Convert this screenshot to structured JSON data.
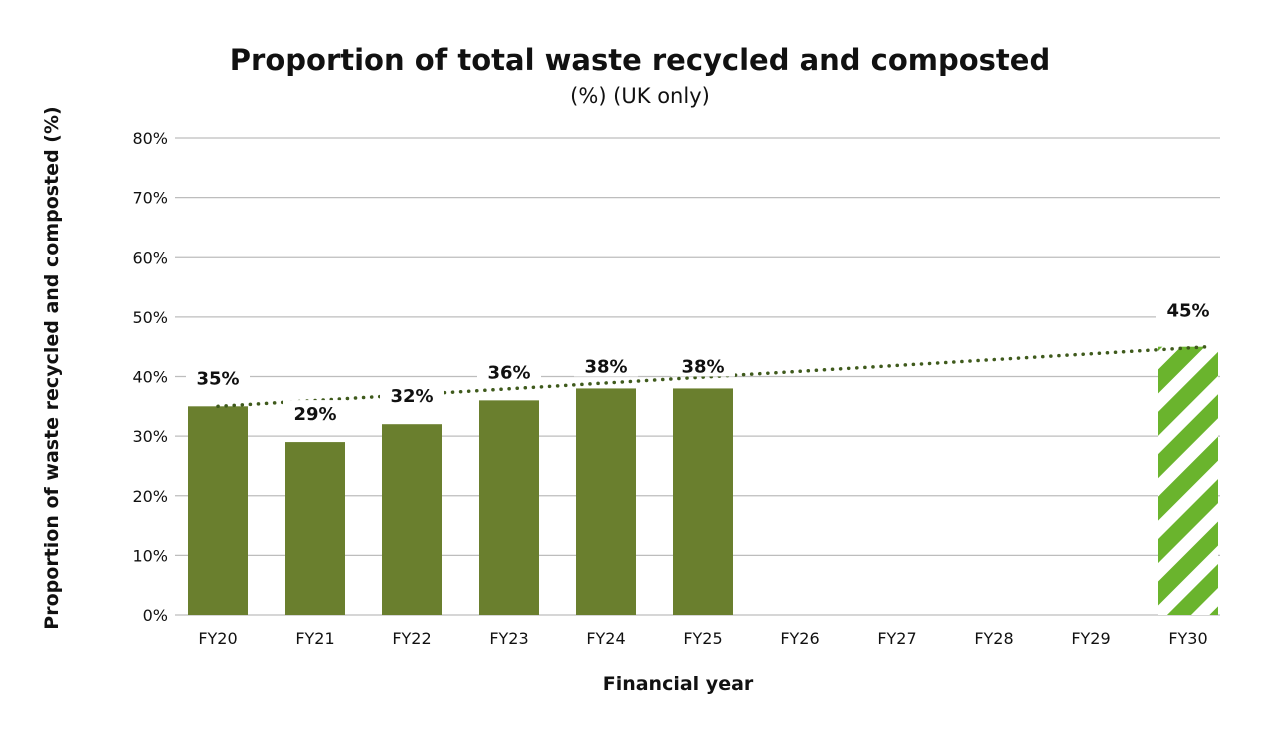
{
  "chart_data": {
    "type": "bar",
    "title": "Proportion of total waste recycled and composted",
    "subtitle": "(%) (UK only)",
    "xlabel": "Financial year",
    "ylabel": "Proportion of waste recycled and composted (%)",
    "categories": [
      "FY20",
      "FY21",
      "FY22",
      "FY23",
      "FY24",
      "FY25",
      "FY26",
      "FY27",
      "FY28",
      "FY29",
      "FY30"
    ],
    "values": [
      35,
      29,
      32,
      36,
      38,
      38,
      null,
      null,
      null,
      null,
      45
    ],
    "data_labels": [
      "35%",
      "29%",
      "32%",
      "36%",
      "38%",
      "38%",
      "",
      "",
      "",
      "",
      "45%"
    ],
    "target_category": "FY30",
    "ylim": [
      0,
      80
    ],
    "yticks": [
      "0%",
      "10%",
      "20%",
      "30%",
      "40%",
      "50%",
      "60%",
      "70%",
      "80%"
    ],
    "grid": true,
    "trendline": {
      "style": "dotted",
      "from": [
        "FY20",
        35
      ],
      "to": [
        "FY30",
        45
      ]
    },
    "colors": {
      "actual": "#6a7f2e",
      "target": "#6ab42d",
      "trend": "#3f5a1c",
      "grid": "#bdbdbd"
    }
  }
}
